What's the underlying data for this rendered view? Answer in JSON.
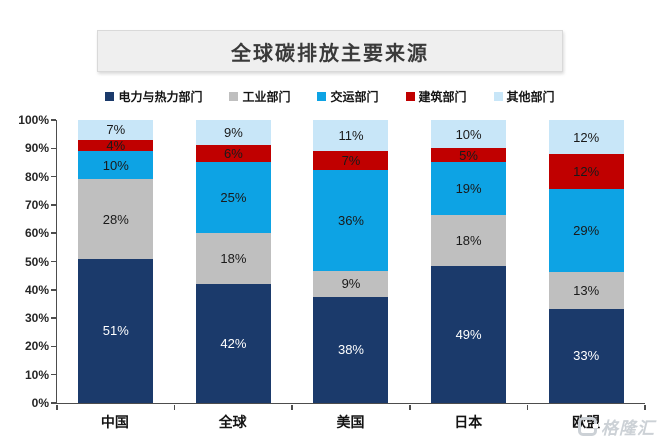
{
  "header": {
    "title": "全球碳排放主要来源"
  },
  "watermark": {
    "logo": "G",
    "text": "格隆汇"
  },
  "chart_data": {
    "type": "bar",
    "stacked": true,
    "percent_stacked": true,
    "title": "全球碳排放主要来源",
    "categories": [
      "中国",
      "全球",
      "美国",
      "日本",
      "欧盟"
    ],
    "series": [
      {
        "name": "电力与热力部门",
        "color": "#1B3A6B",
        "label_color": "#FFFFFF",
        "values": [
          51,
          42,
          38,
          49,
          33
        ]
      },
      {
        "name": "工业部门",
        "color": "#BFBFBF",
        "label_color": "#1A1A1A",
        "values": [
          28,
          18,
          9,
          18,
          13
        ]
      },
      {
        "name": "交运部门",
        "color": "#0DA3E4",
        "label_color": "#1A1A1A",
        "values": [
          10,
          25,
          36,
          19,
          29
        ]
      },
      {
        "name": "建筑部门",
        "color": "#C00000",
        "label_color": "#1A1A1A",
        "values": [
          4,
          6,
          7,
          5,
          12
        ]
      },
      {
        "name": "其他部门",
        "color": "#C8E6F8",
        "label_color": "#1A1A1A",
        "values": [
          7,
          9,
          11,
          10,
          12
        ]
      }
    ],
    "value_suffix": "%",
    "y_ticks": [
      "100%",
      "90%",
      "80%",
      "70%",
      "60%",
      "50%",
      "40%",
      "30%",
      "20%",
      "10%",
      "0%"
    ],
    "ylim": [
      0,
      100
    ],
    "grid": false,
    "legend_position": "top",
    "axis_color": "#4D4D4D"
  }
}
